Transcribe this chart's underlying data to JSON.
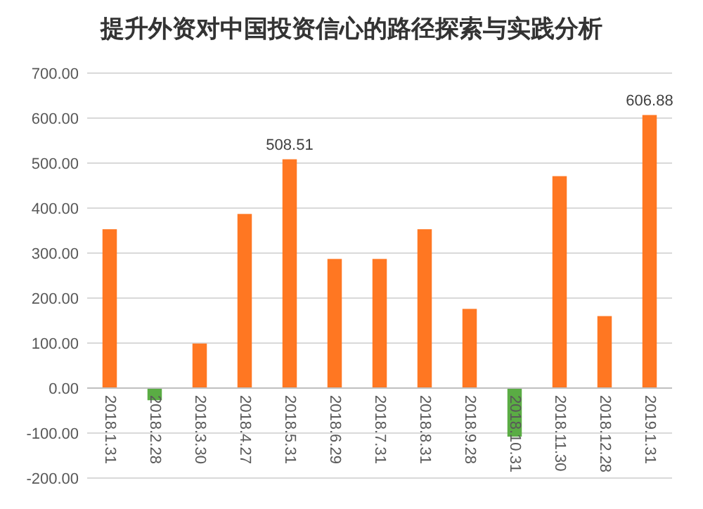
{
  "chart_data": {
    "type": "bar",
    "title": "提升外资对中国投资信心的路径探索与实践分析",
    "categories": [
      "2018.1.31",
      "2018.2.28",
      "2018.3.30",
      "2018.4.27",
      "2018.5.31",
      "2018.6.29",
      "2018.7.31",
      "2018.8.31",
      "2018.9.28",
      "2018.10.31",
      "2018.11.30",
      "2018.12.28",
      "2019.1.31"
    ],
    "values": [
      353,
      -27,
      99,
      387,
      508.51,
      287,
      287,
      353,
      176,
      -108,
      471,
      160,
      606.88
    ],
    "colors": [
      "#ff7722",
      "#5aac44",
      "#ff7722",
      "#ff7722",
      "#ff7722",
      "#ff7722",
      "#ff7722",
      "#ff7722",
      "#ff7722",
      "#5aac44",
      "#ff7722",
      "#ff7722",
      "#ff7722"
    ],
    "value_labels": [
      null,
      null,
      null,
      null,
      "508.51",
      null,
      null,
      null,
      null,
      null,
      null,
      null,
      "606.88"
    ],
    "ylim": [
      -200,
      700
    ],
    "yticks": [
      {
        "value": -200,
        "label": "-200.00"
      },
      {
        "value": -100,
        "label": "-100.00"
      },
      {
        "value": 0,
        "label": "0.00"
      },
      {
        "value": 100,
        "label": "100.00"
      },
      {
        "value": 200,
        "label": "200.00"
      },
      {
        "value": 300,
        "label": "300.00"
      },
      {
        "value": 400,
        "label": "400.00"
      },
      {
        "value": 500,
        "label": "500.00"
      },
      {
        "value": 600,
        "label": "600.00"
      },
      {
        "value": 700,
        "label": "700.00"
      }
    ],
    "grid": "y"
  }
}
